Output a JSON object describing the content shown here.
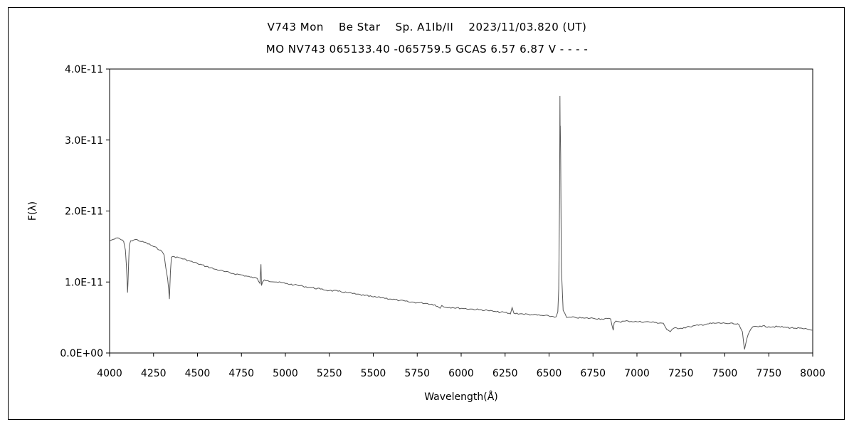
{
  "chart_data": {
    "type": "line",
    "title": "V743 Mon    Be Star    Sp. A1Ib/II    2023/11/03.820 (UT)",
    "subtitle": "MO NV743 065133.40 -065759.5 GCAS 6.57 6.87 V - - - -",
    "xlabel": "Wavelength(Å)",
    "ylabel": "F(λ)",
    "xlim": [
      4000,
      8000
    ],
    "ylim": [
      0,
      4e-11
    ],
    "x_ticks": [
      "4000",
      "4250",
      "4500",
      "4750",
      "5000",
      "5250",
      "5500",
      "5750",
      "6000",
      "6250",
      "6500",
      "6750",
      "7000",
      "7250",
      "7500",
      "7750",
      "8000"
    ],
    "y_ticks": [
      "0.0E+00",
      "1.0E-11",
      "2.0E-11",
      "3.0E-11",
      "4.0E-11"
    ],
    "grid": false,
    "series": [
      {
        "color": "#555555",
        "x": [
          4000,
          4020,
          4050,
          4080,
          4090,
          4095,
          4100,
          4102,
          4104,
          4108,
          4112,
          4120,
          4150,
          4180,
          4210,
          4250,
          4290,
          4310,
          4320,
          4330,
          4336,
          4340,
          4342,
          4346,
          4352,
          4360,
          4400,
          4450,
          4500,
          4550,
          4600,
          4650,
          4700,
          4750,
          4800,
          4840,
          4855,
          4861,
          4864,
          4870,
          4880,
          4900,
          4950,
          5000,
          5050,
          5100,
          5150,
          5200,
          5250,
          5300,
          5350,
          5400,
          5450,
          5500,
          5550,
          5600,
          5650,
          5700,
          5750,
          5800,
          5850,
          5880,
          5890,
          5900,
          5950,
          6000,
          6050,
          6100,
          6150,
          6200,
          6250,
          6280,
          6290,
          6300,
          6350,
          6400,
          6450,
          6500,
          6540,
          6550,
          6555,
          6560,
          6562,
          6563,
          6564,
          6566,
          6570,
          6580,
          6600,
          6650,
          6700,
          6750,
          6800,
          6850,
          6865,
          6870,
          6880,
          6900,
          6950,
          7000,
          7050,
          7100,
          7150,
          7170,
          7190,
          7210,
          7250,
          7300,
          7350,
          7400,
          7450,
          7500,
          7550,
          7580,
          7600,
          7608,
          7612,
          7616,
          7625,
          7640,
          7660,
          7700,
          7750,
          7800,
          7850,
          7900,
          7950,
          8000
        ],
        "y": [
          1.58e-11,
          1.6e-11,
          1.62e-11,
          1.57e-11,
          1.45e-11,
          1.25e-11,
          1e-11,
          8.5e-12,
          9.5e-12,
          1.25e-11,
          1.52e-11,
          1.58e-11,
          1.6e-11,
          1.57e-11,
          1.55e-11,
          1.5e-11,
          1.45e-11,
          1.38e-11,
          1.2e-11,
          1.05e-11,
          9e-12,
          7.6e-12,
          8.8e-12,
          1.15e-11,
          1.35e-11,
          1.36e-11,
          1.34e-11,
          1.3e-11,
          1.26e-11,
          1.22e-11,
          1.18e-11,
          1.15e-11,
          1.12e-11,
          1.1e-11,
          1.07e-11,
          1.05e-11,
          9.8e-12,
          1.25e-11,
          9.5e-12,
          1e-11,
          1.03e-11,
          1.02e-11,
          1e-11,
          9.8e-12,
          9.6e-12,
          9.4e-12,
          9.2e-12,
          9e-12,
          8.8e-12,
          8.7e-12,
          8.5e-12,
          8.3e-12,
          8.1e-12,
          7.9e-12,
          7.8e-12,
          7.6e-12,
          7.4e-12,
          7.2e-12,
          7.1e-12,
          7e-12,
          6.8e-12,
          6.3e-12,
          6.7e-12,
          6.5e-12,
          6.4e-12,
          6.3e-12,
          6.2e-12,
          6.1e-12,
          6e-12,
          5.8e-12,
          5.7e-12,
          5.5e-12,
          6.4e-12,
          5.6e-12,
          5.5e-12,
          5.4e-12,
          5.3e-12,
          5.2e-12,
          5.1e-12,
          5.8e-12,
          9e-12,
          2.2e-11,
          3.62e-11,
          3.1e-11,
          3.2e-11,
          2.8e-11,
          1.2e-11,
          6e-12,
          5e-12,
          5e-12,
          4.9e-12,
          4.9e-12,
          4.8e-12,
          4.8e-12,
          3.2e-12,
          4.2e-12,
          4.5e-12,
          4.4e-12,
          4.5e-12,
          4.4e-12,
          4.4e-12,
          4.3e-12,
          4.2e-12,
          3.3e-12,
          3e-12,
          3.5e-12,
          3.5e-12,
          3.7e-12,
          3.9e-12,
          4.1e-12,
          4.2e-12,
          4.2e-12,
          4.1e-12,
          4e-12,
          3e-12,
          1.2e-12,
          5e-13,
          1e-12,
          2e-12,
          3e-12,
          3.7e-12,
          3.8e-12,
          3.7e-12,
          3.7e-12,
          3.6e-12,
          3.5e-12,
          3.4e-12,
          3.2e-12
        ]
      }
    ]
  }
}
